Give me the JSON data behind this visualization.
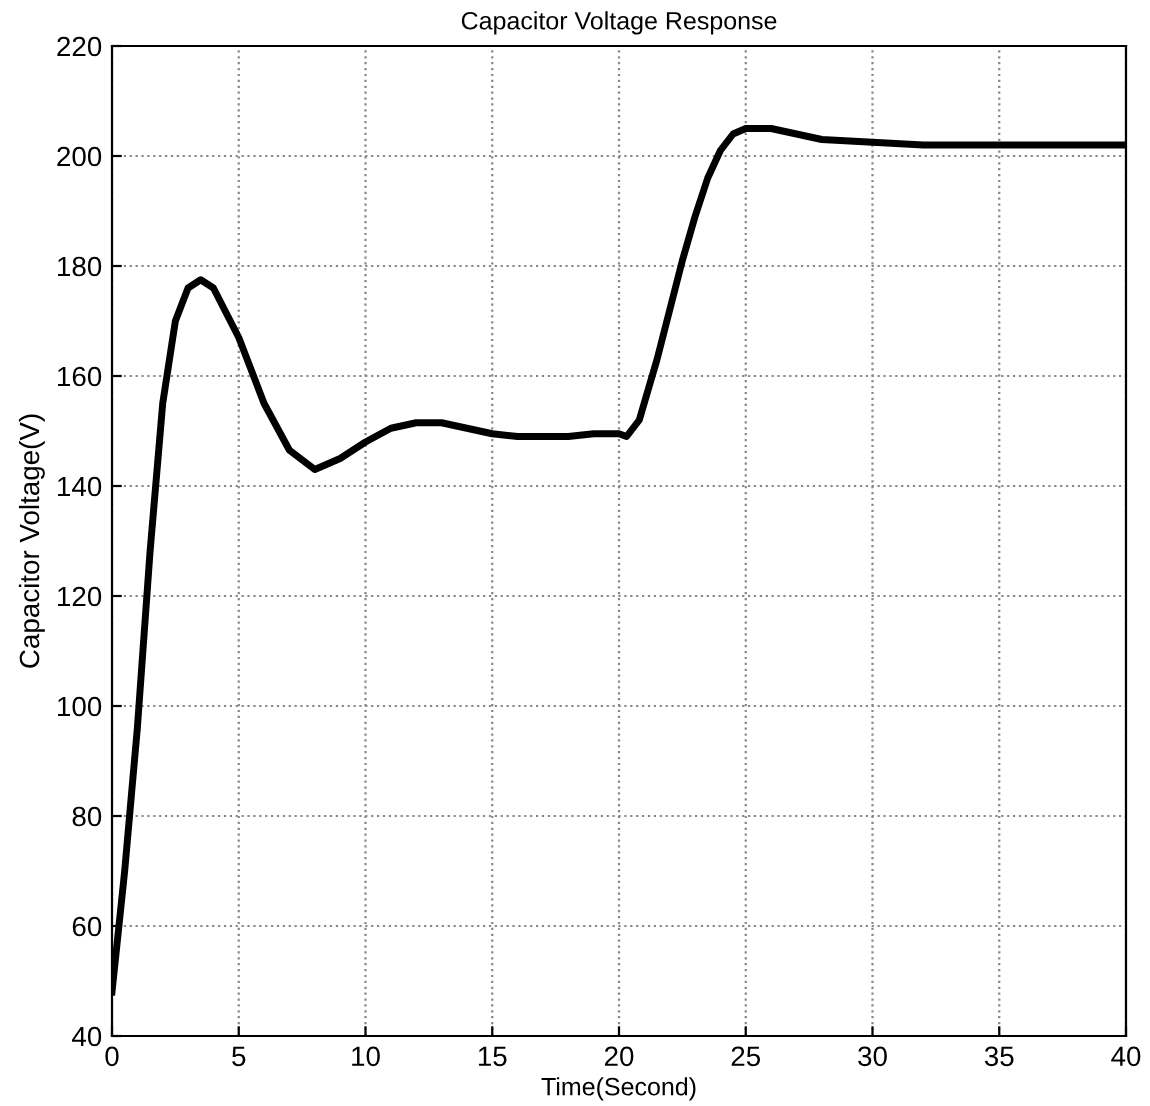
{
  "chart_data": {
    "type": "line",
    "title": "Capacitor Voltage Response",
    "xlabel": "Time(Second)",
    "ylabel": "Capacitor Voltage(V)",
    "x": [
      0,
      0.5,
      1,
      1.5,
      2,
      2.5,
      3,
      3.5,
      4,
      5,
      6,
      7,
      8,
      9,
      10,
      11,
      12,
      13,
      14,
      15,
      16,
      18,
      19,
      20,
      20.3,
      20.8,
      21.5,
      22,
      22.5,
      23,
      23.5,
      24,
      24.5,
      25,
      26,
      27,
      28,
      30,
      32,
      40
    ],
    "series": [
      {
        "color": "#000000",
        "values": [
          48,
          70,
          96,
          128,
          155,
          170,
          176,
          177.5,
          176,
          167,
          155,
          146.5,
          143,
          145,
          148,
          150.5,
          151.5,
          151.5,
          150.5,
          149.5,
          149,
          149,
          149.5,
          149.5,
          149,
          152,
          163,
          172,
          181,
          189,
          196,
          201,
          204,
          205,
          205,
          204,
          203,
          202.5,
          202,
          202
        ]
      }
    ],
    "xlim": [
      0,
      40
    ],
    "ylim": [
      40,
      220
    ],
    "xticks": [
      0,
      5,
      10,
      15,
      20,
      25,
      30,
      35,
      40
    ],
    "yticks": [
      40,
      60,
      80,
      100,
      120,
      140,
      160,
      180,
      200,
      220
    ],
    "grid": true,
    "legend": false,
    "marker": "none",
    "line_style": "solid"
  }
}
